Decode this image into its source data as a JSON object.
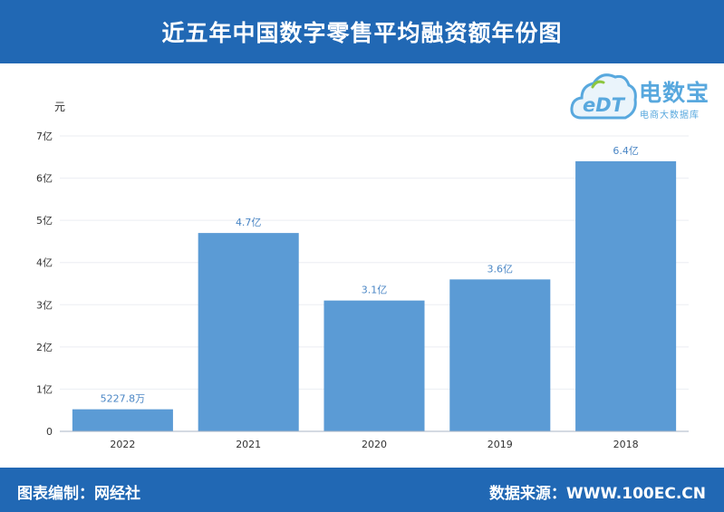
{
  "header": {
    "title": "近五年中国数字零售平均融资额年份图"
  },
  "footer": {
    "left_text": "图表编制：网经社",
    "right_text": "数据来源：WWW.100EC.CN"
  },
  "logo": {
    "cloud_text": "eDT",
    "brand_text": "电数宝",
    "brand_sub": "电商大数据库"
  },
  "colors": {
    "header_bg": "#2168b4",
    "bar": "#5b9bd5",
    "data_label": "#4a86c5",
    "logo": "#58a8de"
  },
  "chart_data": {
    "type": "bar",
    "ylabel": "元",
    "categories": [
      "2022",
      "2021",
      "2020",
      "2019",
      "2018"
    ],
    "values": [
      52278000,
      470000000,
      310000000,
      360000000,
      640000000
    ],
    "data_labels": [
      "5227.8万",
      "4.7亿",
      "3.1亿",
      "3.6亿",
      "6.4亿"
    ],
    "yticks": [
      0,
      100000000,
      200000000,
      300000000,
      400000000,
      500000000,
      600000000,
      700000000
    ],
    "ytick_labels": [
      "0",
      "1亿",
      "2亿",
      "3亿",
      "4亿",
      "5亿",
      "6亿",
      "7亿"
    ],
    "ylim": [
      0,
      700000000
    ],
    "grid": true,
    "legend": "none"
  }
}
